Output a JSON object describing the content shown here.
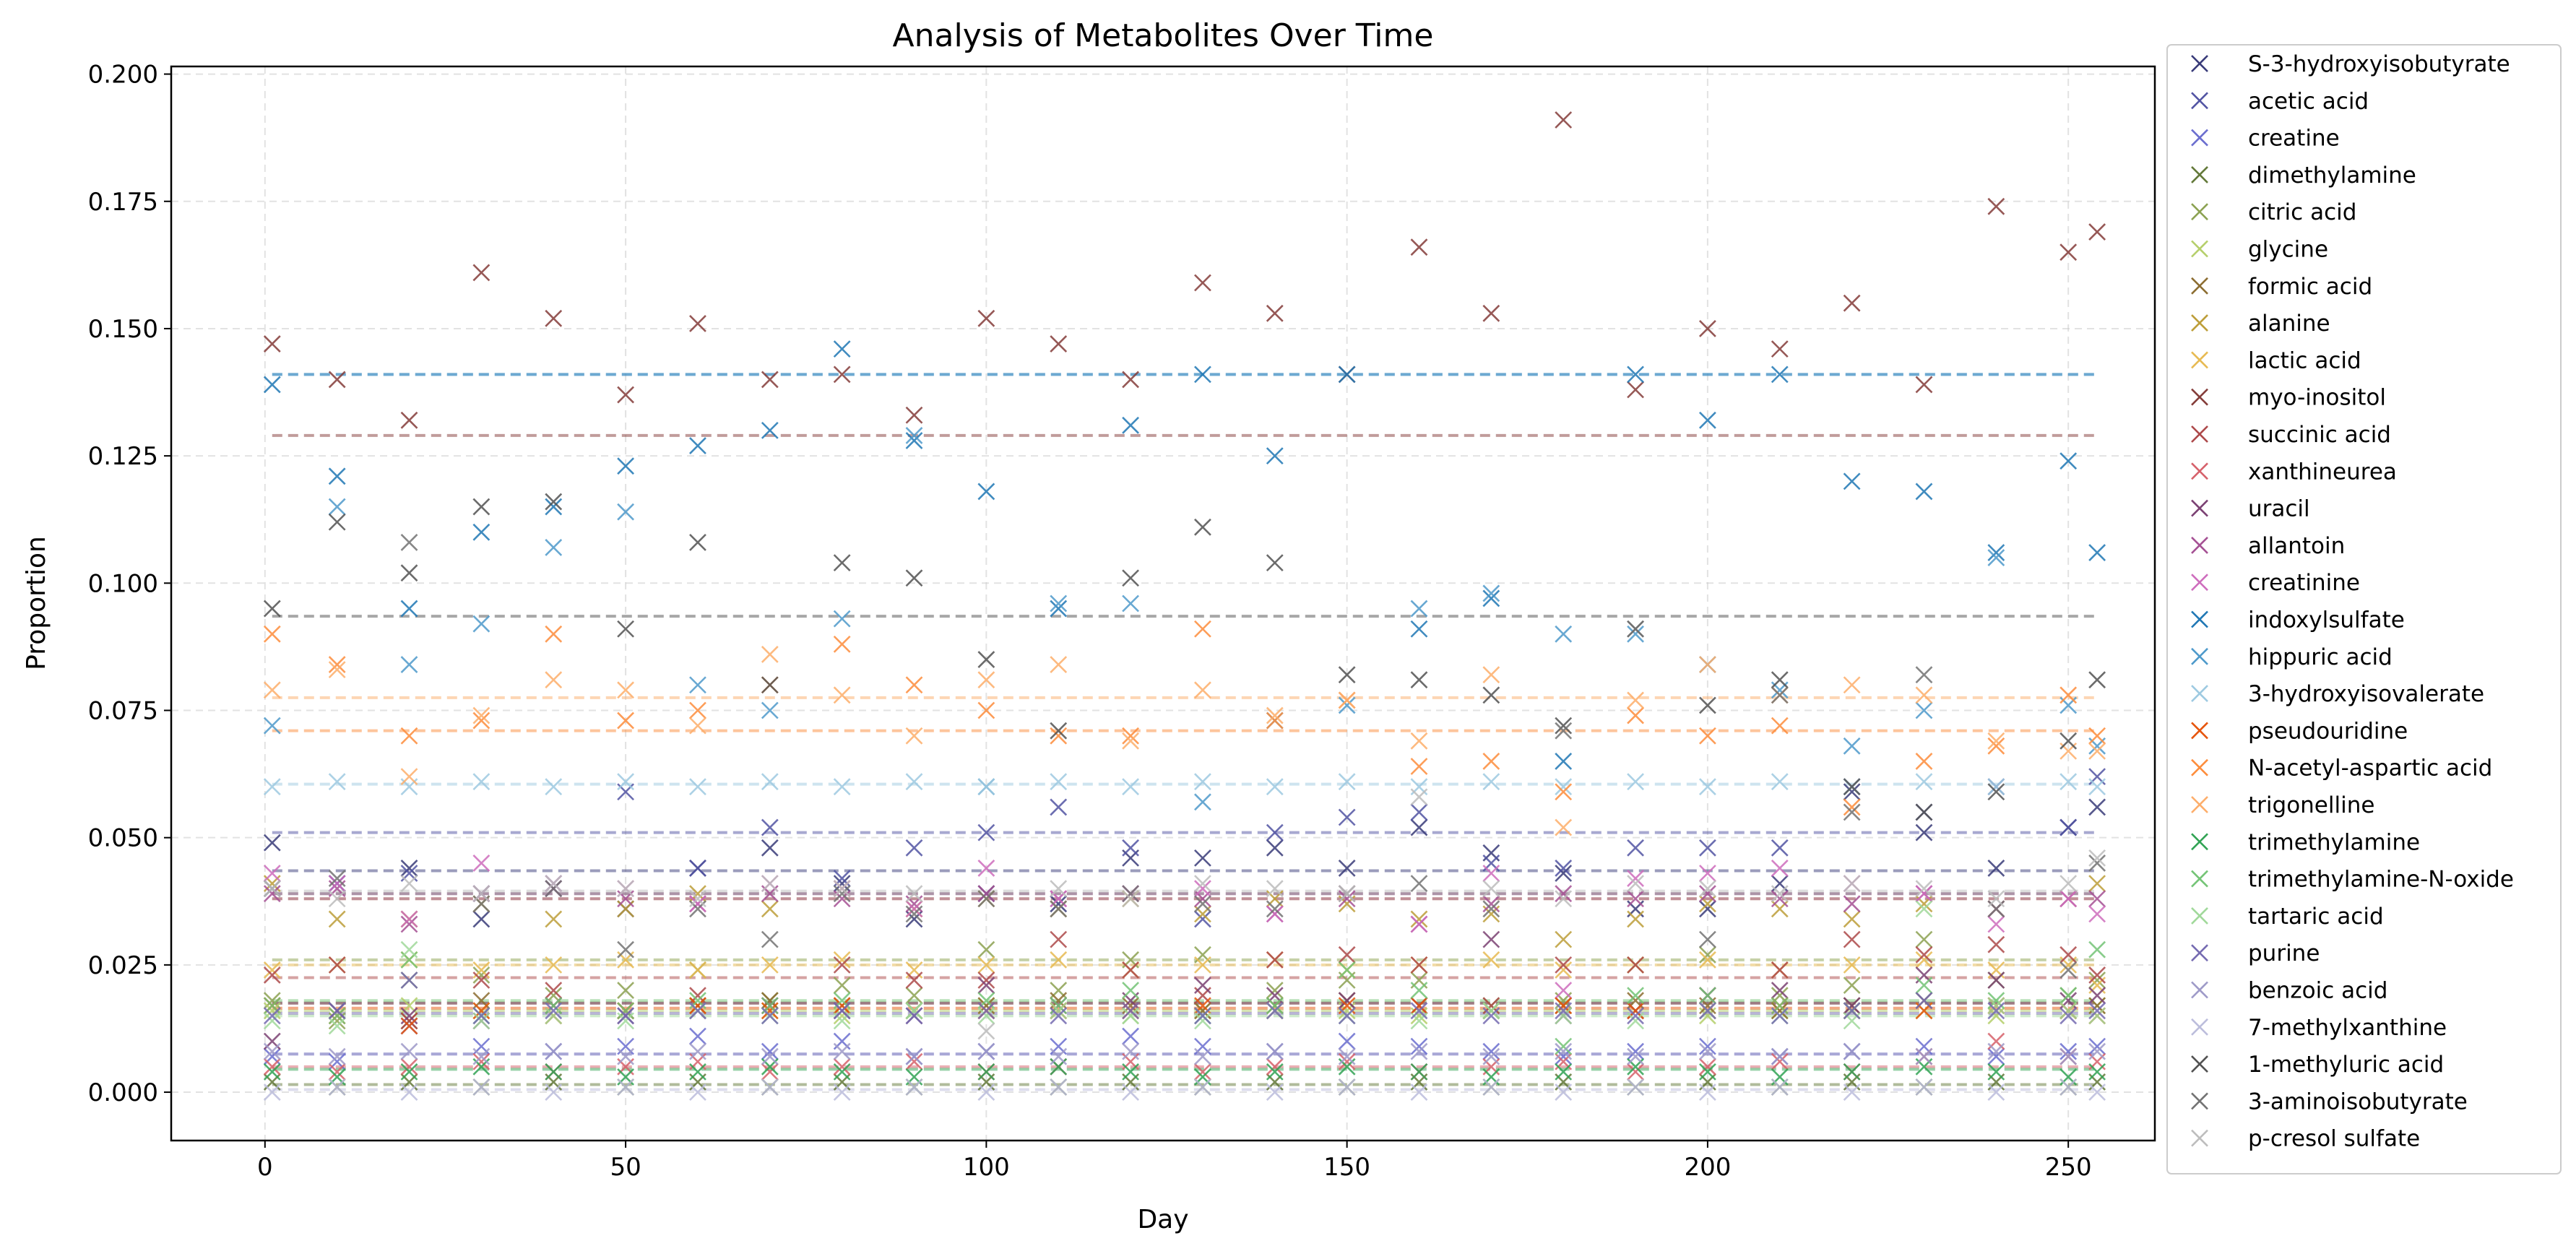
{
  "chart_data": {
    "type": "scatter",
    "title": "Analysis of Metabolites Over Time",
    "xlabel": "Day",
    "ylabel": "Proportion",
    "xlim": [
      -13,
      262
    ],
    "ylim": [
      -0.0095,
      0.2015
    ],
    "xticks": [
      0,
      50,
      100,
      150,
      200,
      250
    ],
    "xtick_labels": [
      "0",
      "50",
      "100",
      "150",
      "200",
      "250"
    ],
    "yticks": [
      0.0,
      0.025,
      0.05,
      0.075,
      0.1,
      0.125,
      0.15,
      0.175,
      0.2
    ],
    "ytick_labels": [
      "0.000",
      "0.025",
      "0.050",
      "0.075",
      "0.100",
      "0.125",
      "0.150",
      "0.175",
      "0.200"
    ],
    "grid": true,
    "legend_position": "outside-right",
    "marker": "x",
    "mean_lines": "dashed",
    "x": [
      1,
      10,
      20,
      30,
      40,
      50,
      60,
      70,
      80,
      90,
      100,
      110,
      120,
      130,
      140,
      150,
      160,
      170,
      180,
      190,
      200,
      210,
      220,
      230,
      240,
      250,
      254
    ],
    "series": [
      {
        "name": "S-3-hydroxyisobutyrate",
        "color": "#393b79",
        "mean": 0.0435,
        "values": [
          0.049,
          0.041,
          0.044,
          0.034,
          0.04,
          0.036,
          0.044,
          0.048,
          0.041,
          0.034,
          0.039,
          0.037,
          0.046,
          0.046,
          0.048,
          0.044,
          0.052,
          0.047,
          0.043,
          0.036,
          0.036,
          0.041,
          0.059,
          0.051,
          0.044,
          0.052,
          0.056
        ]
      },
      {
        "name": "acetic acid",
        "color": "#5254a3",
        "mean": 0.051,
        "values": [
          0.04,
          0.041,
          0.043,
          0.039,
          0.041,
          0.059,
          0.044,
          0.052,
          0.042,
          0.048,
          0.051,
          0.056,
          0.048,
          0.034,
          0.051,
          0.054,
          0.055,
          0.045,
          0.044,
          0.048,
          0.048,
          0.048,
          0.06,
          0.055,
          0.06,
          0.052,
          0.062
        ]
      },
      {
        "name": "creatine",
        "color": "#6b6ecf",
        "mean": 0.0075,
        "values": [
          0.007,
          0.006,
          0.013,
          0.009,
          0.008,
          0.009,
          0.011,
          0.008,
          0.01,
          0.007,
          0.008,
          0.009,
          0.011,
          0.009,
          0.008,
          0.01,
          0.009,
          0.008,
          0.007,
          0.008,
          0.009,
          0.007,
          0.008,
          0.009,
          0.007,
          0.008,
          0.009
        ]
      },
      {
        "name": "dimethylamine",
        "color": "#637939",
        "mean": 0.0015,
        "values": [
          0.002,
          0.001,
          0.002,
          0.001,
          0.002,
          0.001,
          0.002,
          0.001,
          0.002,
          0.001,
          0.002,
          0.001,
          0.002,
          0.001,
          0.002,
          0.001,
          0.002,
          0.001,
          0.002,
          0.001,
          0.002,
          0.001,
          0.002,
          0.001,
          0.002,
          0.001,
          0.002
        ]
      },
      {
        "name": "citric acid",
        "color": "#8ca252",
        "mean": 0.026,
        "values": [
          0.018,
          0.014,
          0.022,
          0.023,
          0.019,
          0.02,
          0.024,
          0.018,
          0.021,
          0.019,
          0.028,
          0.02,
          0.026,
          0.027,
          0.02,
          0.022,
          0.022,
          0.017,
          0.018,
          0.025,
          0.027,
          0.019,
          0.021,
          0.03,
          0.022,
          0.019,
          0.022
        ]
      },
      {
        "name": "glycine",
        "color": "#b5cf6b",
        "mean": 0.016,
        "values": [
          0.016,
          0.016,
          0.017,
          0.016,
          0.015,
          0.016,
          0.017,
          0.016,
          0.015,
          0.016,
          0.017,
          0.016,
          0.015,
          0.016,
          0.017,
          0.016,
          0.015,
          0.016,
          0.017,
          0.016,
          0.015,
          0.016,
          0.017,
          0.016,
          0.015,
          0.016,
          0.017
        ]
      },
      {
        "name": "formic acid",
        "color": "#8c6d31",
        "mean": 0.0175,
        "values": [
          0.017,
          0.016,
          0.014,
          0.018,
          0.017,
          0.016,
          0.017,
          0.018,
          0.017,
          0.016,
          0.017,
          0.018,
          0.017,
          0.016,
          0.017,
          0.018,
          0.017,
          0.016,
          0.017,
          0.018,
          0.017,
          0.016,
          0.017,
          0.018,
          0.017,
          0.016,
          0.017
        ]
      },
      {
        "name": "alanine",
        "color": "#bd9e39",
        "mean": 0.038,
        "values": [
          0.041,
          0.034,
          0.034,
          0.037,
          0.034,
          0.036,
          0.039,
          0.036,
          0.04,
          0.036,
          0.038,
          0.036,
          0.038,
          0.035,
          0.038,
          0.037,
          0.034,
          0.035,
          0.03,
          0.034,
          0.037,
          0.036,
          0.034,
          0.037,
          0.036,
          0.038,
          0.041
        ]
      },
      {
        "name": "lactic acid",
        "color": "#e7ba52",
        "mean": 0.025,
        "values": [
          0.024,
          0.025,
          0.026,
          0.024,
          0.025,
          0.026,
          0.024,
          0.025,
          0.026,
          0.024,
          0.025,
          0.026,
          0.024,
          0.025,
          0.026,
          0.024,
          0.025,
          0.026,
          0.024,
          0.025,
          0.026,
          0.024,
          0.025,
          0.026,
          0.024,
          0.025,
          0.021
        ]
      },
      {
        "name": "myo-inositol",
        "color": "#843c39",
        "mean": 0.129,
        "values": [
          0.147,
          0.14,
          0.132,
          0.161,
          0.152,
          0.137,
          0.151,
          0.14,
          0.141,
          0.133,
          0.152,
          0.147,
          0.14,
          0.159,
          0.153,
          0.141,
          0.166,
          0.153,
          0.191,
          0.138,
          0.15,
          0.146,
          0.155,
          0.139,
          0.174,
          0.165,
          0.169
        ]
      },
      {
        "name": "succinic acid",
        "color": "#ad494a",
        "mean": 0.0225,
        "values": [
          0.023,
          0.025,
          0.014,
          0.022,
          0.02,
          0.016,
          0.019,
          0.017,
          0.025,
          0.022,
          0.022,
          0.03,
          0.024,
          0.019,
          0.026,
          0.027,
          0.025,
          0.017,
          0.025,
          0.025,
          0.019,
          0.024,
          0.03,
          0.027,
          0.029,
          0.027,
          0.023
        ]
      },
      {
        "name": "xanthineurea",
        "color": "#d6616b",
        "mean": 0.005,
        "values": [
          0.005,
          0.004,
          0.005,
          0.006,
          0.004,
          0.005,
          0.006,
          0.004,
          0.005,
          0.006,
          0.004,
          0.005,
          0.006,
          0.004,
          0.005,
          0.006,
          0.004,
          0.005,
          0.006,
          0.004,
          0.005,
          0.006,
          0.004,
          0.007,
          0.01,
          0.007,
          0.006
        ]
      },
      {
        "name": "uracil",
        "color": "#7b4173",
        "mean": 0.0175,
        "values": [
          0.01,
          0.016,
          0.015,
          0.014,
          0.017,
          0.015,
          0.016,
          0.017,
          0.016,
          0.015,
          0.021,
          0.017,
          0.018,
          0.021,
          0.019,
          0.018,
          0.017,
          0.03,
          0.015,
          0.016,
          0.019,
          0.02,
          0.017,
          0.023,
          0.022,
          0.018,
          0.019
        ]
      },
      {
        "name": "allantoin",
        "color": "#a55194",
        "mean": 0.038,
        "values": [
          0.039,
          0.04,
          0.033,
          0.039,
          0.04,
          0.038,
          0.037,
          0.039,
          0.038,
          0.037,
          0.039,
          0.038,
          0.039,
          0.038,
          0.035,
          0.038,
          0.033,
          0.037,
          0.039,
          0.038,
          0.039,
          0.038,
          0.037,
          0.039,
          0.036,
          0.038,
          0.038
        ]
      },
      {
        "name": "creatinine",
        "color": "#ce6dbd",
        "mean": 0.039,
        "values": [
          0.043,
          0.041,
          0.034,
          0.045,
          0.041,
          0.04,
          0.037,
          0.041,
          0.04,
          0.036,
          0.044,
          0.038,
          0.039,
          0.04,
          0.035,
          0.039,
          0.033,
          0.043,
          0.02,
          0.042,
          0.043,
          0.044,
          0.041,
          0.039,
          0.033,
          0.038,
          0.035
        ]
      },
      {
        "name": "indoxylsulfate",
        "color": "#1f77b4",
        "mean": 0.141,
        "values": [
          0.139,
          0.121,
          0.095,
          0.11,
          0.115,
          0.123,
          0.127,
          0.13,
          0.146,
          0.128,
          0.118,
          0.095,
          0.131,
          0.141,
          0.125,
          0.141,
          0.091,
          0.097,
          0.065,
          0.141,
          0.132,
          0.141,
          0.12,
          0.118,
          0.106,
          0.124,
          0.106
        ]
      },
      {
        "name": "hippuric acid",
        "color": "#4e9acb",
        "mean": 0.141,
        "values": [
          0.072,
          0.115,
          0.084,
          0.092,
          0.107,
          0.114,
          0.08,
          0.075,
          0.093,
          0.129,
          0.06,
          0.096,
          0.096,
          0.057,
          0.073,
          0.076,
          0.095,
          0.098,
          0.09,
          0.09,
          0.084,
          0.079,
          0.068,
          0.075,
          0.105,
          0.076,
          0.068
        ]
      },
      {
        "name": "3-hydroxyisovalerate",
        "color": "#9ecae1",
        "mean": 0.0605,
        "values": [
          0.06,
          0.061,
          0.06,
          0.061,
          0.06,
          0.061,
          0.06,
          0.061,
          0.06,
          0.061,
          0.06,
          0.061,
          0.06,
          0.061,
          0.06,
          0.061,
          0.06,
          0.061,
          0.06,
          0.061,
          0.06,
          0.061,
          0.06,
          0.061,
          0.06,
          0.061,
          0.06
        ]
      },
      {
        "name": "pseudouridine",
        "color": "#e6550d",
        "mean": 0.0165,
        "values": [
          0.017,
          0.015,
          0.013,
          0.016,
          0.015,
          0.016,
          0.017,
          0.016,
          0.017,
          0.016,
          0.016,
          0.016,
          0.016,
          0.017,
          0.016,
          0.017,
          0.017,
          0.016,
          0.017,
          0.016,
          0.016,
          0.017,
          0.016,
          0.016,
          0.017,
          0.016,
          0.015
        ]
      },
      {
        "name": "N-acetyl-aspartic acid",
        "color": "#fd8d3c",
        "mean": 0.071,
        "values": [
          0.09,
          0.084,
          0.07,
          0.073,
          0.09,
          0.073,
          0.075,
          0.08,
          0.088,
          0.08,
          0.075,
          0.07,
          0.07,
          0.091,
          0.073,
          0.077,
          0.064,
          0.065,
          0.059,
          0.074,
          0.07,
          0.072,
          0.056,
          0.065,
          0.068,
          0.078,
          0.07
        ]
      },
      {
        "name": "trigonelline",
        "color": "#fdae6b",
        "mean": 0.0775,
        "values": [
          0.079,
          0.083,
          0.062,
          0.074,
          0.081,
          0.079,
          0.072,
          0.086,
          0.078,
          0.07,
          0.081,
          0.084,
          0.069,
          0.079,
          0.074,
          0.077,
          0.069,
          0.082,
          0.052,
          0.077,
          0.084,
          0.078,
          0.08,
          0.078,
          0.069,
          0.067,
          0.067
        ]
      },
      {
        "name": "trimethylamine",
        "color": "#31a354",
        "mean": 0.0045,
        "values": [
          0.004,
          0.003,
          0.004,
          0.005,
          0.004,
          0.003,
          0.004,
          0.005,
          0.004,
          0.003,
          0.004,
          0.005,
          0.004,
          0.003,
          0.004,
          0.005,
          0.004,
          0.003,
          0.004,
          0.005,
          0.004,
          0.003,
          0.004,
          0.005,
          0.004,
          0.003,
          0.004
        ]
      },
      {
        "name": "trimethylamine-N-oxide",
        "color": "#74c476",
        "mean": 0.018,
        "values": [
          0.017,
          0.015,
          0.026,
          0.015,
          0.017,
          0.016,
          0.018,
          0.017,
          0.018,
          0.016,
          0.018,
          0.017,
          0.02,
          0.015,
          0.017,
          0.024,
          0.02,
          0.016,
          0.009,
          0.019,
          0.019,
          0.017,
          0.016,
          0.021,
          0.018,
          0.019,
          0.028
        ]
      },
      {
        "name": "tartaric acid",
        "color": "#a1d99b",
        "mean": 0.015,
        "values": [
          0.014,
          0.013,
          0.028,
          0.014,
          0.015,
          0.014,
          0.016,
          0.015,
          0.014,
          0.016,
          0.015,
          0.016,
          0.015,
          0.014,
          0.016,
          0.015,
          0.014,
          0.016,
          0.015,
          0.014,
          0.016,
          0.015,
          0.014,
          0.036,
          0.017,
          0.016,
          0.015
        ]
      },
      {
        "name": "purine",
        "color": "#756bb1",
        "mean": 0.0155,
        "values": [
          0.015,
          0.016,
          0.022,
          0.015,
          0.016,
          0.015,
          0.016,
          0.015,
          0.016,
          0.015,
          0.016,
          0.015,
          0.016,
          0.015,
          0.016,
          0.015,
          0.016,
          0.015,
          0.016,
          0.015,
          0.016,
          0.015,
          0.016,
          0.018,
          0.016,
          0.015,
          0.016
        ]
      },
      {
        "name": "benzoic acid",
        "color": "#9e9ac8",
        "mean": 0.0075,
        "values": [
          0.008,
          0.007,
          0.008,
          0.007,
          0.008,
          0.007,
          0.008,
          0.007,
          0.008,
          0.007,
          0.008,
          0.007,
          0.008,
          0.007,
          0.008,
          0.007,
          0.008,
          0.007,
          0.008,
          0.007,
          0.008,
          0.007,
          0.008,
          0.007,
          0.008,
          0.007,
          0.008
        ]
      },
      {
        "name": "7-methylxanthine",
        "color": "#bcbddc",
        "mean": 0.0005,
        "values": [
          0.0,
          0.001,
          0.0,
          0.001,
          0.0,
          0.001,
          0.0,
          0.001,
          0.0,
          0.001,
          0.0,
          0.001,
          0.0,
          0.001,
          0.0,
          0.001,
          0.0,
          0.001,
          0.0,
          0.001,
          0.0,
          0.001,
          0.0,
          0.001,
          0.0,
          0.001,
          0.0
        ]
      },
      {
        "name": "1-methyluric acid",
        "color": "#525252",
        "mean": 0.0935,
        "values": [
          0.095,
          0.112,
          0.102,
          0.115,
          0.116,
          0.091,
          0.108,
          0.08,
          0.104,
          0.101,
          0.085,
          0.071,
          0.101,
          0.111,
          0.104,
          0.082,
          0.081,
          0.078,
          0.072,
          0.091,
          0.076,
          0.081,
          0.06,
          0.055,
          0.059,
          0.069,
          0.081
        ]
      },
      {
        "name": "3-aminoisobutyrate",
        "color": "#737373",
        "mean": 0.039,
        "values": [
          0.04,
          0.042,
          0.108,
          0.037,
          0.04,
          0.028,
          0.036,
          0.03,
          0.039,
          0.035,
          0.038,
          0.036,
          0.039,
          0.037,
          0.036,
          0.039,
          0.041,
          0.036,
          0.071,
          0.091,
          0.03,
          0.078,
          0.055,
          0.082,
          0.036,
          0.024,
          0.045
        ]
      },
      {
        "name": "p-cresol sulfate",
        "color": "#bdbdbd",
        "mean": 0.0395,
        "values": [
          0.04,
          0.038,
          0.041,
          0.039,
          0.041,
          0.04,
          0.038,
          0.041,
          0.04,
          0.039,
          0.012,
          0.04,
          0.038,
          0.041,
          0.04,
          0.039,
          0.058,
          0.04,
          0.038,
          0.041,
          0.04,
          0.039,
          0.041,
          0.04,
          0.038,
          0.041,
          0.046
        ]
      }
    ]
  }
}
